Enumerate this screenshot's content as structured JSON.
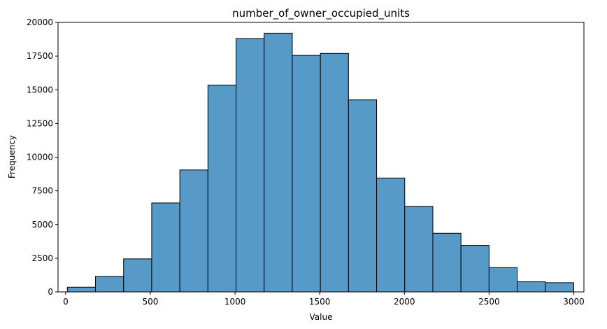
{
  "chart_data": {
    "type": "bar",
    "title": "number_of_owner_occupied_units",
    "xlabel": "Value",
    "ylabel": "Frequency",
    "xlim": [
      -45,
      3060
    ],
    "ylim": [
      0,
      20000
    ],
    "xticks": [
      0,
      500,
      1000,
      1500,
      2000,
      2500,
      3000
    ],
    "yticks": [
      0,
      2500,
      5000,
      7500,
      10000,
      12500,
      15000,
      17500,
      20000
    ],
    "grid": false,
    "bar_color": "#5799c7",
    "edge_color": "#000000",
    "bins": [
      {
        "x0": 10,
        "x1": 176,
        "value": 350
      },
      {
        "x0": 176,
        "x1": 342,
        "value": 1150
      },
      {
        "x0": 342,
        "x1": 508,
        "value": 2450
      },
      {
        "x0": 508,
        "x1": 674,
        "value": 6600
      },
      {
        "x0": 674,
        "x1": 840,
        "value": 9050
      },
      {
        "x0": 840,
        "x1": 1006,
        "value": 15350
      },
      {
        "x0": 1006,
        "x1": 1172,
        "value": 18800
      },
      {
        "x0": 1172,
        "x1": 1338,
        "value": 19200
      },
      {
        "x0": 1338,
        "x1": 1504,
        "value": 17550
      },
      {
        "x0": 1504,
        "x1": 1670,
        "value": 17700
      },
      {
        "x0": 1670,
        "x1": 1836,
        "value": 14250
      },
      {
        "x0": 1836,
        "x1": 2002,
        "value": 8450
      },
      {
        "x0": 2002,
        "x1": 2168,
        "value": 6350
      },
      {
        "x0": 2168,
        "x1": 2334,
        "value": 4350
      },
      {
        "x0": 2334,
        "x1": 2500,
        "value": 3450
      },
      {
        "x0": 2500,
        "x1": 2666,
        "value": 1800
      },
      {
        "x0": 2666,
        "x1": 2832,
        "value": 750
      },
      {
        "x0": 2832,
        "x1": 3000,
        "value": 680
      }
    ]
  }
}
